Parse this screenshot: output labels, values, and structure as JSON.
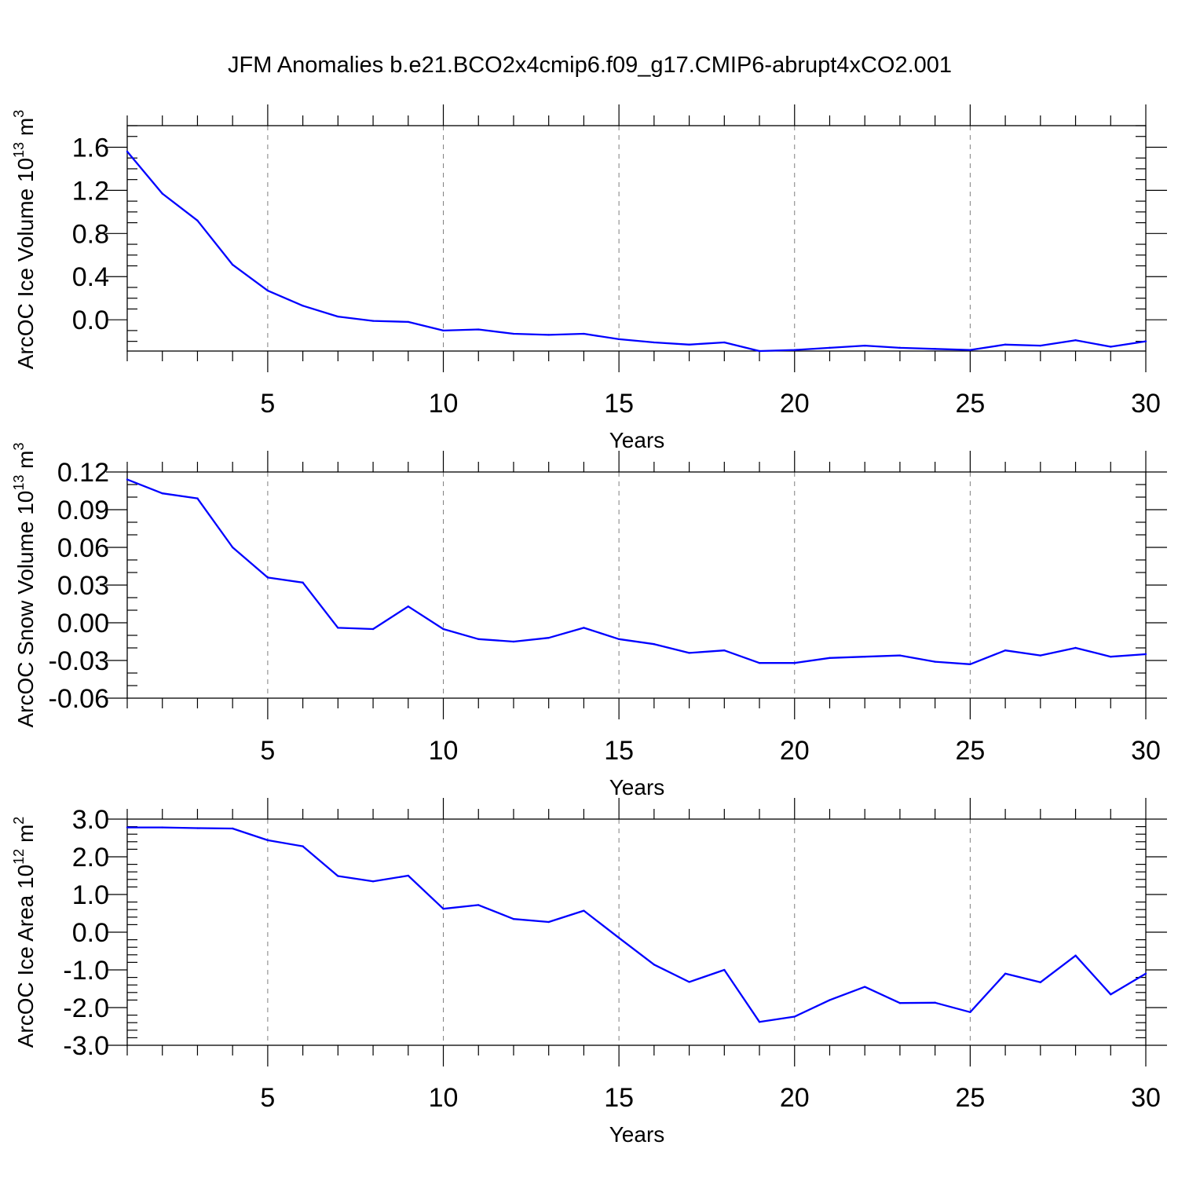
{
  "title": "JFM Anomalies b.e21.BCO2x4cmip6.f09_g17.CMIP6-abrupt4xCO2.001",
  "colors": {
    "line": "#0000ff",
    "axis": "#000000",
    "grid": "#808080",
    "background": "#ffffff"
  },
  "chart_data": [
    {
      "type": "line",
      "ylabel": "ArcOC Ice Volume 10",
      "ylabel_exp": "13",
      "ylabel_unit": " m",
      "ylabel_unit_exp": "3",
      "xlabel": "Years",
      "xlim": [
        1,
        30
      ],
      "ylim": [
        -0.29,
        1.8
      ],
      "yticks": [
        0.0,
        0.4,
        0.8,
        1.2,
        1.6
      ],
      "ytick_labels": [
        "0.0",
        "0.4",
        "0.8",
        "1.2",
        "1.6"
      ],
      "yminor_step": 0.1,
      "xticks": [
        5,
        10,
        15,
        20,
        25,
        30
      ],
      "xtick_labels": [
        "5",
        "10",
        "15",
        "20",
        "25",
        "30"
      ],
      "grid": "vertical dashed at major x ticks",
      "x": [
        1,
        2,
        3,
        4,
        5,
        6,
        7,
        8,
        9,
        10,
        11,
        12,
        13,
        14,
        15,
        16,
        17,
        18,
        19,
        20,
        21,
        22,
        23,
        24,
        25,
        26,
        27,
        28,
        29,
        30
      ],
      "y": [
        1.56,
        1.17,
        0.92,
        0.51,
        0.27,
        0.13,
        0.03,
        -0.01,
        -0.02,
        -0.1,
        -0.09,
        -0.13,
        -0.14,
        -0.13,
        -0.18,
        -0.21,
        -0.23,
        -0.21,
        -0.29,
        -0.28,
        -0.26,
        -0.24,
        -0.26,
        -0.27,
        -0.28,
        -0.23,
        -0.24,
        -0.19,
        -0.25,
        -0.2
      ]
    },
    {
      "type": "line",
      "ylabel": "ArcOC Snow Volume 10",
      "ylabel_exp": "13",
      "ylabel_unit": " m",
      "ylabel_unit_exp": "3",
      "xlabel": "Years",
      "xlim": [
        1,
        30
      ],
      "ylim": [
        -0.06,
        0.12
      ],
      "yticks": [
        -0.06,
        -0.03,
        0.0,
        0.03,
        0.06,
        0.09,
        0.12
      ],
      "ytick_labels": [
        "-0.06",
        "-0.03",
        "0.00",
        "0.03",
        "0.06",
        "0.09",
        "0.12"
      ],
      "yminor_step": 0.01,
      "xticks": [
        5,
        10,
        15,
        20,
        25,
        30
      ],
      "xtick_labels": [
        "5",
        "10",
        "15",
        "20",
        "25",
        "30"
      ],
      "grid": "vertical dashed at major x ticks",
      "x": [
        1,
        2,
        3,
        4,
        5,
        6,
        7,
        8,
        9,
        10,
        11,
        12,
        13,
        14,
        15,
        16,
        17,
        18,
        19,
        20,
        21,
        22,
        23,
        24,
        25,
        26,
        27,
        28,
        29,
        30
      ],
      "y": [
        0.114,
        0.103,
        0.099,
        0.06,
        0.036,
        0.032,
        -0.004,
        -0.005,
        0.013,
        -0.005,
        -0.013,
        -0.015,
        -0.012,
        -0.004,
        -0.013,
        -0.017,
        -0.024,
        -0.022,
        -0.032,
        -0.032,
        -0.028,
        -0.027,
        -0.026,
        -0.031,
        -0.033,
        -0.022,
        -0.026,
        -0.02,
        -0.027,
        -0.025
      ]
    },
    {
      "type": "line",
      "ylabel": "ArcOC Ice Area 10",
      "ylabel_exp": "12",
      "ylabel_unit": " m",
      "ylabel_unit_exp": "2",
      "xlabel": "Years",
      "xlim": [
        1,
        30
      ],
      "ylim": [
        -3.0,
        3.0
      ],
      "yticks": [
        -3.0,
        -2.0,
        -1.0,
        0.0,
        1.0,
        2.0,
        3.0
      ],
      "ytick_labels": [
        "-3.0",
        "-2.0",
        "-1.0",
        "0.0",
        "1.0",
        "2.0",
        "3.0"
      ],
      "yminor_step": 0.2,
      "xticks": [
        5,
        10,
        15,
        20,
        25,
        30
      ],
      "xtick_labels": [
        "5",
        "10",
        "15",
        "20",
        "25",
        "30"
      ],
      "grid": "vertical dashed at major x ticks",
      "x": [
        1,
        2,
        3,
        4,
        5,
        6,
        7,
        8,
        9,
        10,
        11,
        12,
        13,
        14,
        15,
        16,
        17,
        18,
        19,
        20,
        21,
        22,
        23,
        24,
        25,
        26,
        27,
        28,
        29,
        30
      ],
      "y": [
        2.78,
        2.78,
        2.76,
        2.75,
        2.44,
        2.28,
        1.49,
        1.35,
        1.5,
        0.62,
        0.72,
        0.35,
        0.27,
        0.57,
        -0.15,
        -0.86,
        -1.32,
        -1.0,
        -2.38,
        -2.24,
        -1.8,
        -1.45,
        -1.88,
        -1.87,
        -2.12,
        -1.1,
        -1.33,
        -0.62,
        -1.65,
        -1.1
      ]
    }
  ]
}
